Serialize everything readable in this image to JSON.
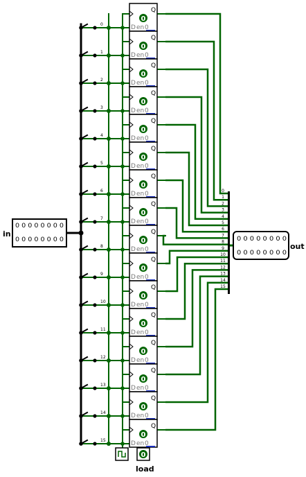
{
  "colors": {
    "wire_on": "#006400",
    "wire_bus": "#000000",
    "dot_green": "#006400",
    "chip_border": "#000000",
    "text": "#000000",
    "text_faint": "#777777",
    "bus_blue": "#1a2fbf"
  },
  "input_label": "in",
  "output_label": "out",
  "load_label": "load",
  "input_rows": [
    "0 0 0 0 0 0 0 0",
    "0 0 0 0 0 0 0 0"
  ],
  "output_rows": [
    "0 0 0 0 0 0 0 0",
    "0 0 0 0 0 0 0 0"
  ],
  "flipflop": {
    "q_label": "Q",
    "d_label": "D",
    "en_label": "en",
    "zero_label": "0",
    "value": "0"
  },
  "bit_labels": [
    "0",
    "1",
    "2",
    "3",
    "4",
    "5",
    "6",
    "7",
    "8",
    "9",
    "10",
    "11",
    "12",
    "13",
    "14",
    "15"
  ],
  "combiner_labels": [
    "0",
    "1",
    "2",
    "3",
    "4",
    "5",
    "6",
    "7",
    "8",
    "9",
    "10",
    "11",
    "12",
    "13",
    "14",
    "15"
  ],
  "load_value": "0"
}
